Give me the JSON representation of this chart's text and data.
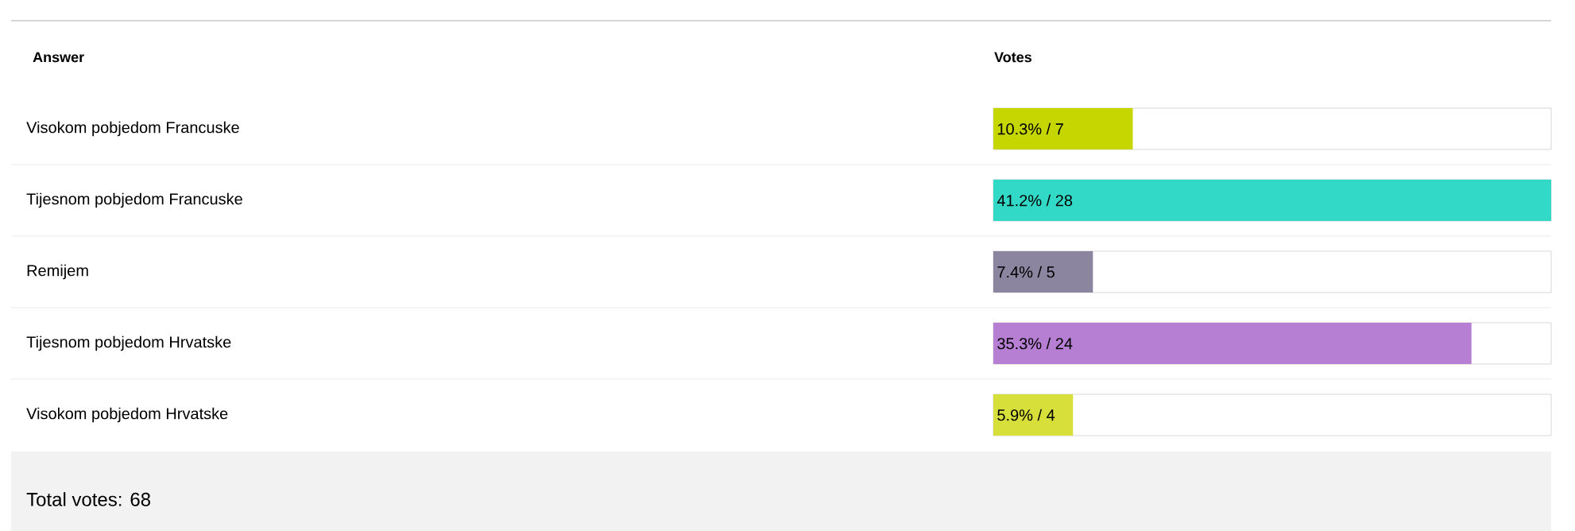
{
  "chart_data": {
    "type": "bar",
    "orientation": "horizontal",
    "ylabel": "Answer",
    "xlabel": "Votes",
    "categories": [
      "Visokom pobjedom Francuske",
      "Tijesnom pobjedom Francuske",
      "Remijem",
      "Tijesnom pobjedom Hrvatske",
      "Visokom pobjedom Hrvatske"
    ],
    "values": [
      7,
      28,
      5,
      24,
      4
    ],
    "colors": [
      "#c5d600",
      "#33d9c7",
      "#8c85a0",
      "#b77fd3",
      "#d7e03b"
    ],
    "value_labels": [
      "10.3% / 7",
      "41.2% / 28",
      "7.4% / 5",
      "35.3% / 24",
      "5.9% / 4"
    ],
    "annotations": [
      "Total votes: 68"
    ]
  }
}
